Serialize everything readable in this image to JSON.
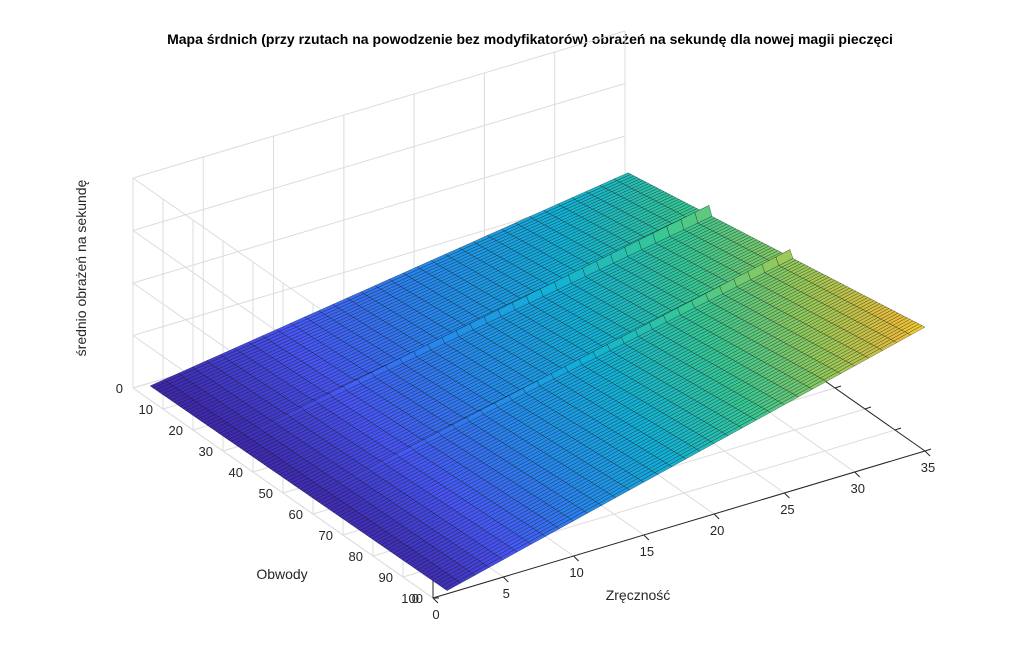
{
  "chart_data": {
    "type": "surface",
    "title": "Mapa śrdnich (przy rzutach na powodzenie bez modyfikatorów) obrażeń na sekundę dla nowej magii pieczęci",
    "xlabel": "Zręczność",
    "ylabel": "Obwody",
    "zlabel": "średnio obrażeń na sekundę",
    "xlim": [
      0,
      35
    ],
    "ylim": [
      0,
      100
    ],
    "zlim": [
      0,
      200
    ],
    "xticks": [
      "0",
      "5",
      "10",
      "15",
      "20",
      "25",
      "30",
      "35"
    ],
    "yticks": [
      "0",
      "10",
      "20",
      "30",
      "40",
      "50",
      "60",
      "70",
      "80",
      "90",
      "100"
    ],
    "zticks": [
      "0",
      "50",
      "100",
      "150",
      "200"
    ],
    "grid": true,
    "colormap": "parula",
    "surface_x_range": [
      1,
      35
    ],
    "surface_y_range": [
      1,
      100
    ],
    "surface_corners": [
      {
        "x": 1,
        "y": 1,
        "z": 0
      },
      {
        "x": 35,
        "y": 1,
        "z": 67
      },
      {
        "x": 1,
        "y": 100,
        "z": 3
      },
      {
        "x": 35,
        "y": 100,
        "z": 118
      }
    ],
    "ridges": [
      {
        "y": 28,
        "extra_z": 9
      },
      {
        "y": 55,
        "extra_z": 7
      }
    ]
  },
  "colors": {
    "background": "#ffffff",
    "grid": "#dcdcdc",
    "axis": "#262626",
    "edge": "#000000"
  }
}
